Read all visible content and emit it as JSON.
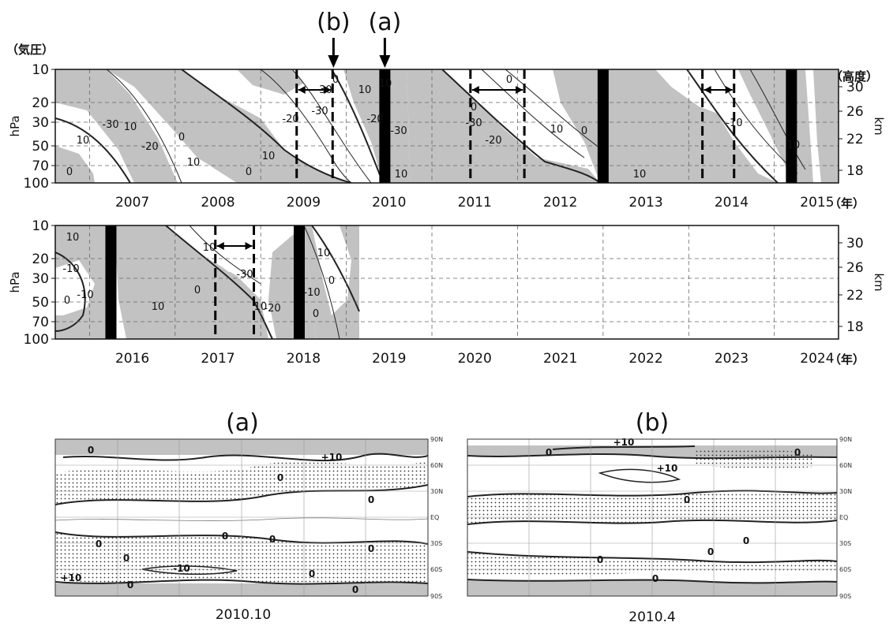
{
  "chart_data": [
    {
      "type": "heatmap",
      "panel": "top",
      "left_axis_label": "（気圧）",
      "left_unit": "hPa",
      "right_axis_label": "（高度）",
      "right_unit": "km",
      "year_suffix": "（年）",
      "pressure_ticks": [
        "10",
        "20",
        "30",
        "50",
        "70",
        "100"
      ],
      "height_ticks": [
        "30",
        "26",
        "22",
        "18"
      ],
      "years": [
        "2007",
        "2008",
        "2009",
        "2010",
        "2011",
        "2012",
        "2013",
        "2014",
        "2015"
      ],
      "x_range": [
        2006.6,
        2015.75
      ],
      "pointers": [
        {
          "label": "(b)",
          "year": 2009.85
        },
        {
          "label": "(a)",
          "year": 2010.45
        }
      ],
      "shift_bars": [
        2010.45,
        2013.0,
        2015.2
      ],
      "dashed_intervals": [
        [
          2009.42,
          2009.84
        ],
        [
          2011.45,
          2012.08
        ],
        [
          2014.16,
          2014.53
        ]
      ],
      "contour_labels": [
        "10",
        "0",
        "10",
        "-20",
        "-30",
        "0",
        "10",
        "0",
        "10",
        "-20",
        "-30",
        "0",
        "10",
        "-30",
        "10",
        "-20",
        "-30",
        "10",
        "0",
        "0",
        "-30",
        "-20",
        "10",
        "0",
        "10",
        "-10",
        "10"
      ]
    },
    {
      "type": "heatmap",
      "panel": "bottom",
      "left_unit": "hPa",
      "right_unit": "km",
      "year_suffix": "（年）",
      "pressure_ticks": [
        "10",
        "20",
        "30",
        "50",
        "70",
        "100"
      ],
      "height_ticks": [
        "30",
        "26",
        "22",
        "18"
      ],
      "years": [
        "2016",
        "2017",
        "2018",
        "2019",
        "2020",
        "2021",
        "2022",
        "2023",
        "2024"
      ],
      "x_range": [
        2015.6,
        2024.75
      ],
      "data_end": 2019.0,
      "shift_bars": [
        2016.25,
        2018.45
      ],
      "dashed_intervals": [
        [
          2017.47,
          2017.92
        ]
      ],
      "contour_labels": [
        "10",
        "-10",
        "0",
        "10",
        "-10",
        "10",
        "-30",
        "0",
        "10",
        "0",
        "10",
        "-20",
        "-10",
        "0"
      ]
    }
  ],
  "maps": {
    "lat_labels": [
      "90N",
      "60N",
      "30N",
      "EQ",
      "30S",
      "60S",
      "90S"
    ],
    "a": {
      "panel_label": "(a)",
      "caption": "2010.10",
      "contour_labels": [
        "0",
        "+10",
        "0",
        "0",
        "0",
        "0",
        "0",
        "0",
        "0",
        "0",
        "-10",
        "+10",
        "0",
        "0"
      ]
    },
    "b": {
      "panel_label": "(b)",
      "caption": "2010.4",
      "contour_labels": [
        "+10",
        "0",
        "+10",
        "0",
        "0",
        "0",
        "0",
        "0",
        "0"
      ]
    }
  }
}
